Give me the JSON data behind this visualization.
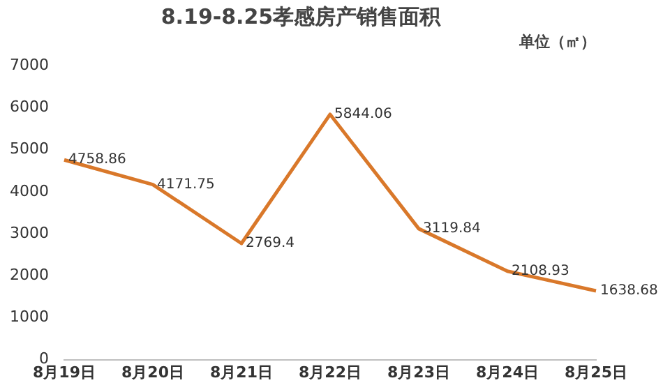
{
  "chart_data": {
    "type": "line",
    "title": "8.19-8.25孝感房产销售面积",
    "subtitle": "单位（㎡）",
    "categories": [
      "8月19日",
      "8月20日",
      "8月21日",
      "8月22日",
      "8月23日",
      "8月24日",
      "8月25日"
    ],
    "series": [
      {
        "color": "#d9782a",
        "values": [
          4758.86,
          4171.75,
          2769.4,
          5844.06,
          3119.84,
          2108.93,
          1638.68
        ]
      }
    ],
    "ylim": [
      0,
      7000
    ],
    "yticks": [
      0,
      1000,
      2000,
      3000,
      4000,
      5000,
      6000,
      7000
    ],
    "grid": false,
    "legend": false,
    "marker": "none",
    "line_style": "solid",
    "data_labels": true
  }
}
